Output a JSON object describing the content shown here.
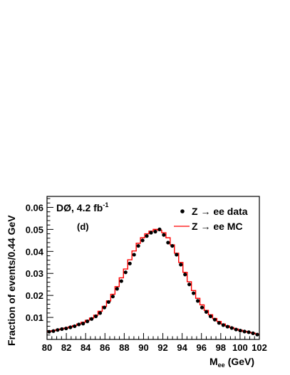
{
  "chart_data": {
    "type": "line",
    "experiment_label": "DØ, 4.2 fb",
    "experiment_label_sup": "-1",
    "panel_label": "(d)",
    "xlabel": "M",
    "xlabel_sub": "ee",
    "xlabel_unit": "(GeV)",
    "ylabel": "Fraction of events/0.44 GeV",
    "xlim": [
      80,
      102
    ],
    "ylim": [
      0.0,
      0.065
    ],
    "xticks": [
      80,
      82,
      84,
      86,
      88,
      90,
      92,
      94,
      96,
      98,
      100,
      102
    ],
    "yticks": [
      0.01,
      0.02,
      0.03,
      0.04,
      0.05,
      0.06
    ],
    "ytick_labels": [
      "0.01",
      "0.02",
      "0.03",
      "0.04",
      "0.05",
      "0.06"
    ],
    "grid": false,
    "legend_position": "top-right",
    "series": [
      {
        "name": "Z → ee data",
        "kind": "points",
        "color": "#000000",
        "x": [
          80.22,
          80.66,
          81.1,
          81.54,
          81.98,
          82.42,
          82.86,
          83.3,
          83.74,
          84.18,
          84.62,
          85.06,
          85.5,
          85.94,
          86.38,
          86.82,
          87.26,
          87.7,
          88.14,
          88.58,
          89.02,
          89.46,
          89.9,
          90.34,
          90.78,
          91.22,
          91.66,
          92.1,
          92.54,
          92.98,
          93.42,
          93.86,
          94.3,
          94.74,
          95.18,
          95.62,
          96.06,
          96.5,
          96.94,
          97.38,
          97.82,
          98.26,
          98.7,
          99.14,
          99.58,
          100.02,
          100.46,
          100.9,
          101.34,
          101.78
        ],
        "y": [
          0.0035,
          0.0038,
          0.0043,
          0.0047,
          0.005,
          0.0055,
          0.006,
          0.0068,
          0.0072,
          0.0082,
          0.0093,
          0.0105,
          0.012,
          0.0145,
          0.017,
          0.0195,
          0.023,
          0.0265,
          0.0305,
          0.0345,
          0.0385,
          0.0425,
          0.045,
          0.047,
          0.0485,
          0.049,
          0.05,
          0.0475,
          0.044,
          0.0425,
          0.0385,
          0.034,
          0.0295,
          0.025,
          0.021,
          0.0175,
          0.0145,
          0.0125,
          0.0105,
          0.009,
          0.0075,
          0.0065,
          0.0058,
          0.0052,
          0.0045,
          0.004,
          0.0036,
          0.0033,
          0.0028,
          0.0022
        ]
      },
      {
        "name": "Z → ee MC",
        "kind": "step",
        "color": "#ff0000",
        "bin_edges": [
          80.0,
          80.44,
          80.88,
          81.32,
          81.76,
          82.2,
          82.64,
          83.08,
          83.52,
          83.96,
          84.4,
          84.84,
          85.28,
          85.72,
          86.16,
          86.6,
          87.04,
          87.48,
          87.92,
          88.36,
          88.8,
          89.24,
          89.68,
          90.12,
          90.56,
          91.0,
          91.44,
          91.88,
          92.32,
          92.76,
          93.2,
          93.64,
          94.08,
          94.52,
          94.96,
          95.4,
          95.84,
          96.28,
          96.72,
          97.16,
          97.6,
          98.04,
          98.48,
          98.92,
          99.36,
          99.8,
          100.24,
          100.68,
          101.12,
          101.56,
          102.0
        ],
        "y": [
          0.0036,
          0.004,
          0.0044,
          0.0048,
          0.0052,
          0.0057,
          0.0063,
          0.007,
          0.0078,
          0.0087,
          0.0097,
          0.011,
          0.0128,
          0.015,
          0.0175,
          0.0205,
          0.024,
          0.028,
          0.032,
          0.0362,
          0.0402,
          0.0437,
          0.0462,
          0.048,
          0.0492,
          0.05,
          0.0496,
          0.0485,
          0.0462,
          0.043,
          0.0392,
          0.035,
          0.0305,
          0.0262,
          0.0222,
          0.0187,
          0.0157,
          0.0132,
          0.0112,
          0.0095,
          0.0082,
          0.007,
          0.0061,
          0.0054,
          0.0048,
          0.0042,
          0.0037,
          0.0033,
          0.0029,
          0.0025
        ]
      }
    ]
  }
}
